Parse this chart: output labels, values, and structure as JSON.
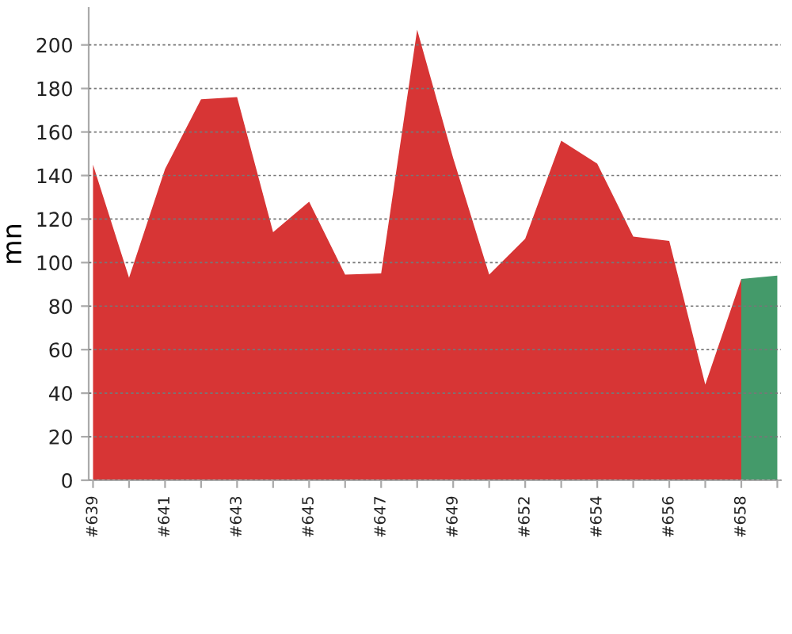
{
  "chart_data": {
    "type": "area",
    "ylabel": "mn",
    "categories": [
      "#639",
      null,
      "#641",
      null,
      "#643",
      null,
      "#645",
      null,
      "#647",
      null,
      "#649",
      null,
      "#652",
      null,
      "#654",
      null,
      "#656",
      null,
      "#658",
      null
    ],
    "series": [
      {
        "color": "#d73535",
        "values": [
          145,
          93,
          143,
          175,
          176,
          114,
          128,
          94.5,
          95,
          207,
          148,
          94.5,
          111,
          156,
          145.5,
          112,
          110,
          44,
          92.5,
          null
        ]
      },
      {
        "color": "#449a6a",
        "values": [
          null,
          null,
          null,
          null,
          null,
          null,
          null,
          null,
          null,
          null,
          null,
          null,
          null,
          null,
          null,
          null,
          null,
          null,
          92.5,
          94
        ]
      }
    ],
    "ylim": [
      0,
      217
    ],
    "yticks": [
      0,
      20,
      40,
      60,
      80,
      100,
      120,
      140,
      160,
      180,
      200
    ],
    "grid": "y"
  }
}
